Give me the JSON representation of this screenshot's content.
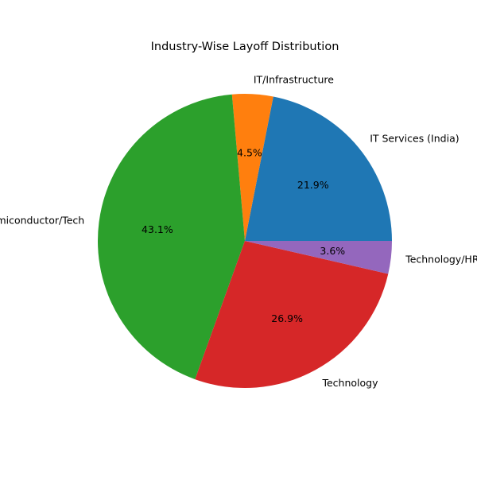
{
  "chart_data": {
    "type": "pie",
    "title": "Industry-Wise Layoff Distribution",
    "slices": [
      {
        "label": "IT Services (India)",
        "pct_label": "21.9%",
        "value": 21.9,
        "color": "#1f77b4"
      },
      {
        "label": "IT/Infrastructure",
        "pct_label": "4.5%",
        "value": 4.5,
        "color": "#ff7f0e"
      },
      {
        "label": "Semiconductor/Tech",
        "pct_label": "43.1%",
        "value": 43.1,
        "color": "#2ca02c"
      },
      {
        "label": "Technology",
        "pct_label": "26.9%",
        "value": 26.9,
        "color": "#d62728"
      },
      {
        "label": "Technology/HR",
        "pct_label": "3.6%",
        "value": 3.6,
        "color": "#9467bd"
      }
    ],
    "start_angle_deg": 0,
    "direction": "counterclockwise",
    "legend": "none"
  }
}
